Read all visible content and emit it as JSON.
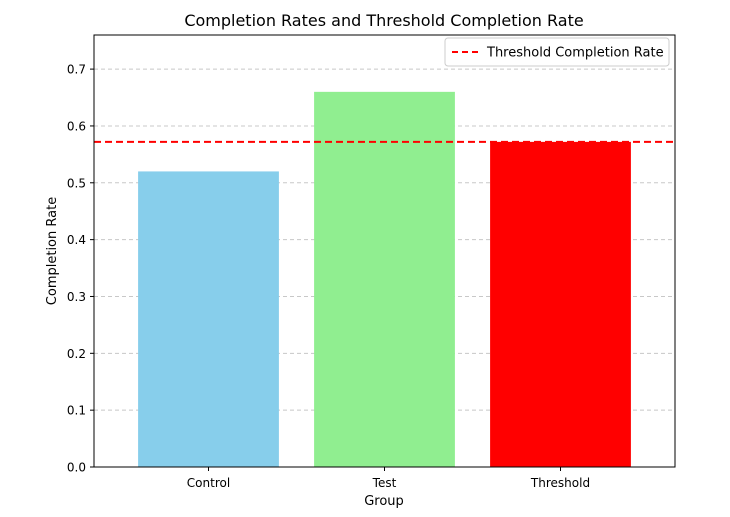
{
  "chart_data": {
    "type": "bar",
    "title": "Completion Rates and Threshold Completion Rate",
    "xlabel": "Group",
    "ylabel": "Completion Rate",
    "categories": [
      "Control",
      "Test",
      "Threshold"
    ],
    "values": [
      0.52,
      0.66,
      0.572
    ],
    "bar_colors": [
      "#87ceeb",
      "#90ee90",
      "#ff0000"
    ],
    "ylim": [
      0,
      0.76
    ],
    "yticks": [
      0.0,
      0.1,
      0.2,
      0.3,
      0.4,
      0.5,
      0.6,
      0.7
    ],
    "ytick_labels": [
      "0.0",
      "0.1",
      "0.2",
      "0.3",
      "0.4",
      "0.5",
      "0.6",
      "0.7"
    ],
    "grid": "y-axis dashed",
    "threshold": {
      "value": 0.572,
      "label": "Threshold Completion Rate",
      "color": "#ff0000",
      "style": "dashed"
    },
    "legend_position": "top-right"
  }
}
